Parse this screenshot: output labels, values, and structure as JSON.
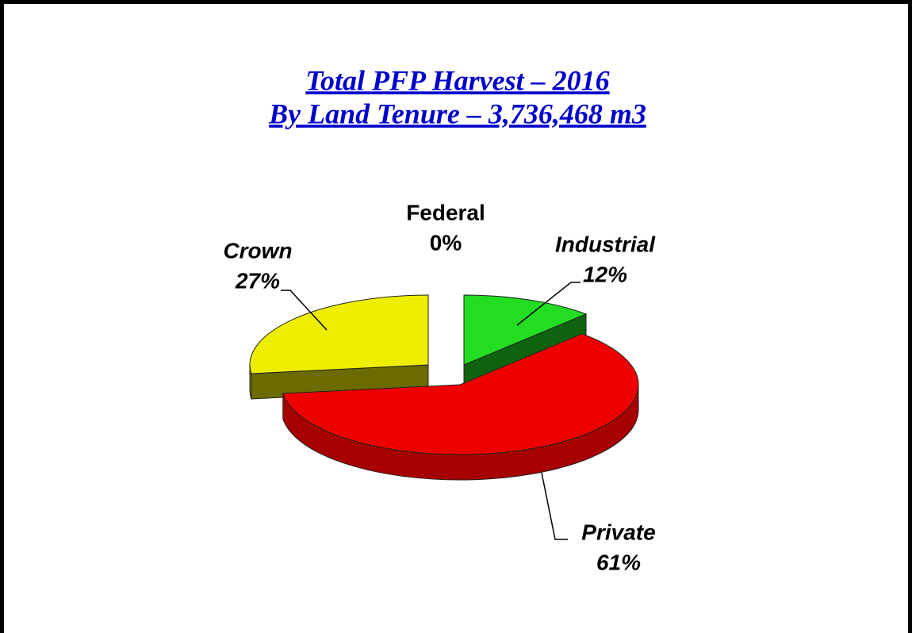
{
  "chart_data": {
    "type": "pie3d",
    "title": "Total PFP Harvest – 2016",
    "subtitle": "By Land Tenure – 3,736,468 m3",
    "categories": [
      "Federal",
      "Industrial",
      "Private",
      "Crown"
    ],
    "values": [
      0,
      12,
      61,
      27
    ],
    "value_labels": [
      "0%",
      "12%",
      "61%",
      "27%"
    ],
    "colors": [
      null,
      "#22dd22",
      "#ee0000",
      "#eeee00"
    ]
  }
}
